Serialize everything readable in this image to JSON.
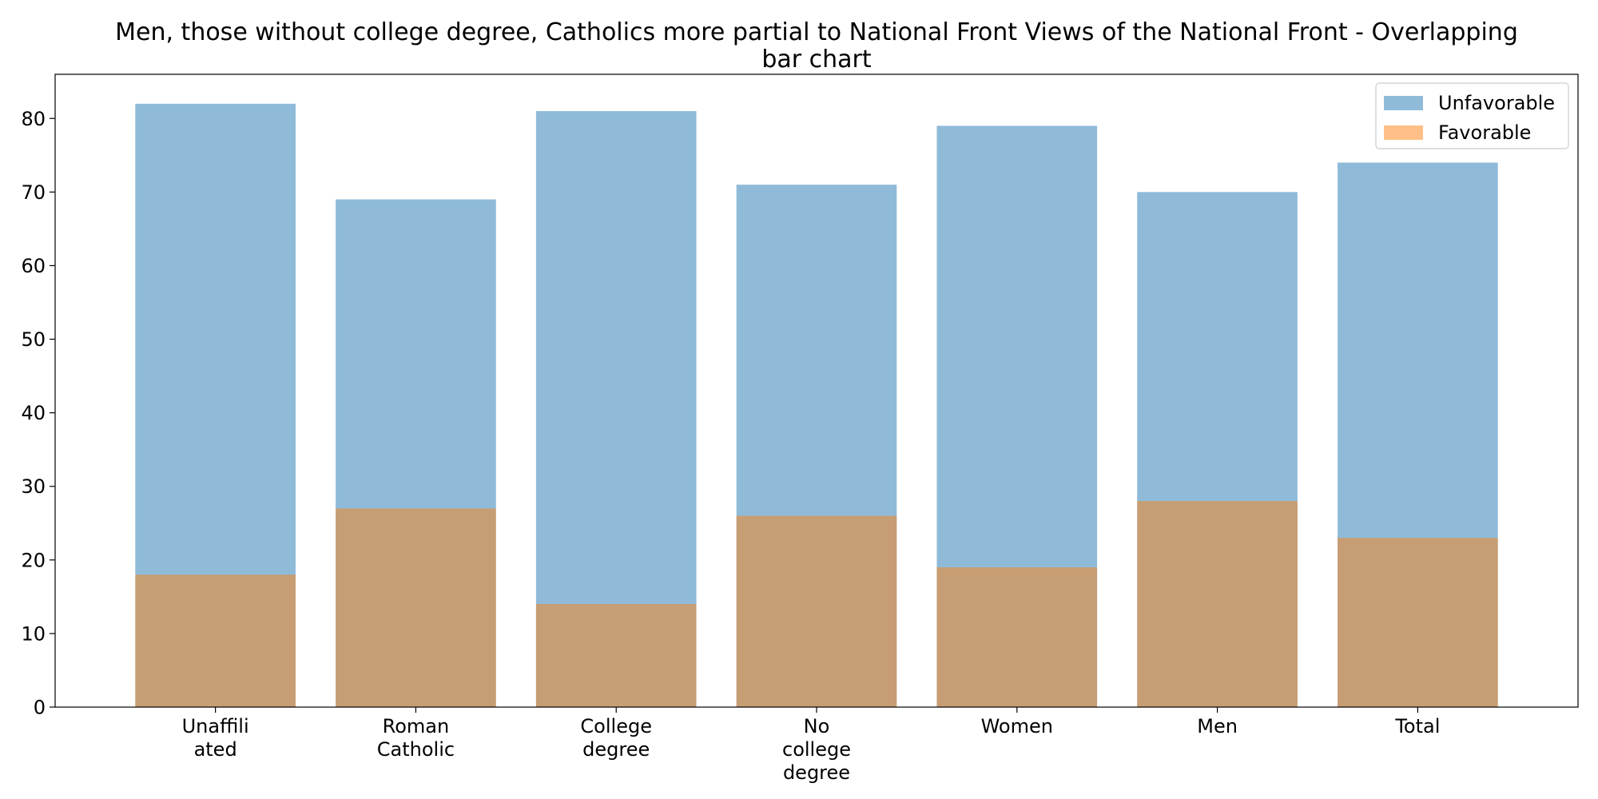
{
  "chart_data": {
    "type": "bar",
    "title_lines": [
      "Men, those without college degree, Catholics more partial to National Front Views of the National Front  - Overlapping",
      "bar chart"
    ],
    "xlabel": "",
    "ylabel": "",
    "categories": [
      [
        "Unaffili",
        "ated"
      ],
      [
        "Roman",
        "Catholic"
      ],
      [
        "College",
        "degree"
      ],
      [
        "No",
        "college",
        "degree"
      ],
      [
        "Women"
      ],
      [
        "Men"
      ],
      [
        "Total"
      ]
    ],
    "series": [
      {
        "name": "Unfavorable",
        "color": "#1f77b4",
        "alpha": 0.5,
        "values": [
          82,
          69,
          81,
          71,
          79,
          70,
          74
        ]
      },
      {
        "name": "Favorable",
        "color": "#ff7f0e",
        "alpha": 0.5,
        "values": [
          18,
          27,
          14,
          26,
          19,
          28,
          23
        ]
      }
    ],
    "ylim": [
      0,
      86
    ],
    "yticks": [
      0,
      10,
      20,
      30,
      40,
      50,
      60,
      70,
      80
    ],
    "grid": false,
    "overlapping": true,
    "legend_position": "top-right"
  }
}
